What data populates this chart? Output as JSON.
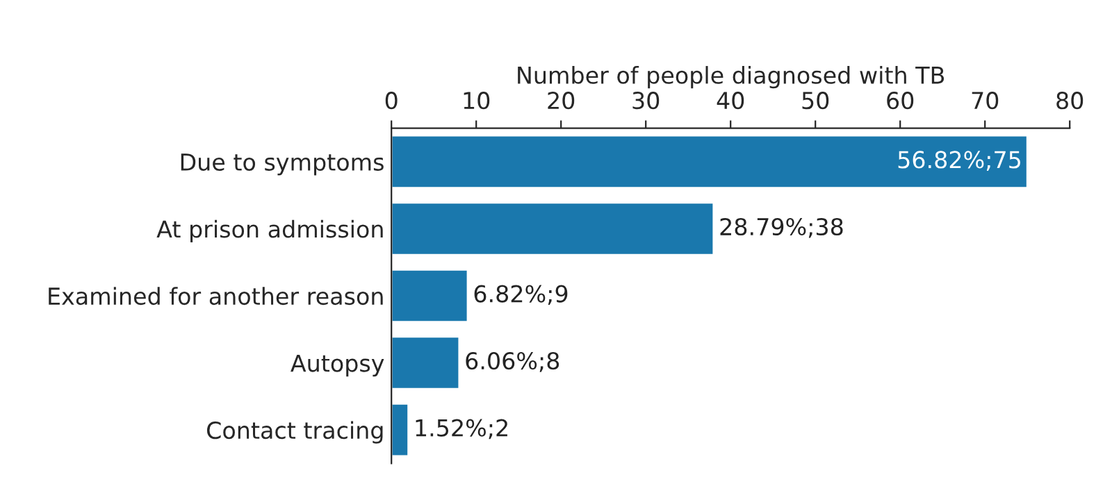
{
  "chart_data": {
    "type": "bar",
    "orientation": "horizontal",
    "xlabel": "Number of people diagnosed with TB",
    "categories": [
      "Due to symptoms",
      "At prison admission",
      "Examined for another reason",
      "Autopsy",
      "Contact tracing"
    ],
    "values": [
      75,
      38,
      9,
      8,
      2
    ],
    "value_labels": [
      "56.82%;75",
      "28.79%;38",
      "6.82%;9",
      "6.06%;8",
      "1.52%;2"
    ],
    "color": "#1a78ad",
    "xlim": [
      0,
      80
    ],
    "xticks": [
      0,
      10,
      20,
      30,
      40,
      50,
      60,
      70,
      80
    ],
    "grid": false,
    "legend": false
  }
}
